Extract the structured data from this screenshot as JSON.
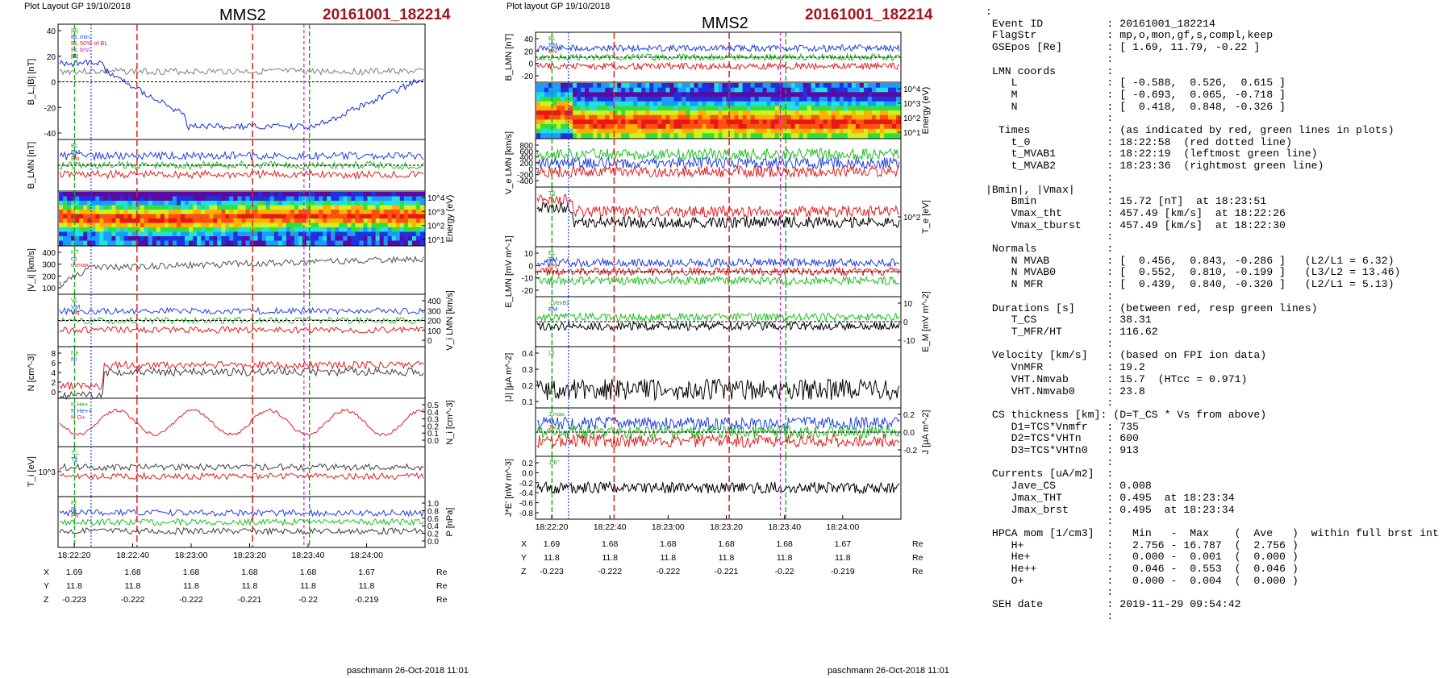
{
  "left": {
    "header": "Plot Layout GP 19/10/2018",
    "sc": "MMS2",
    "event": "20161001_182214",
    "footer": "paschmann 26-Oct-2018 11:01",
    "panels": [
      {
        "ylabel": "B_L,|B| [nT]",
        "side": "left",
        "ticks": [
          "40",
          "20",
          "0",
          "-20",
          "-40"
        ],
        "legend": [
          "|B|",
          "BL min.",
          "BL 50% of BL",
          "BL brst",
          "|B|"
        ]
      },
      {
        "ylabel": "B_LMN [nT]",
        "side": "left",
        "ticks": [],
        "legend": [
          "BL",
          "BM",
          "BN"
        ]
      },
      {
        "ylabel": "Energy (eV)",
        "side": "right",
        "ticks": [
          "10^4",
          "10^3",
          "10^2",
          "10^1"
        ],
        "legend": []
      },
      {
        "ylabel": "|V_i| [km/s]",
        "side": "left",
        "ticks": [
          "400",
          "300",
          "200",
          "100"
        ],
        "legend": [
          "HT",
          "cs",
          "dvmax"
        ]
      },
      {
        "ylabel": "V_i LMN [km/s]",
        "side": "right",
        "ticks": [
          "400",
          "300",
          "200",
          "100",
          "0"
        ],
        "legend": [
          "VL",
          "VM",
          "VN"
        ]
      },
      {
        "ylabel": "N [cm^-3]",
        "side": "left",
        "ticks": [
          "8",
          "6",
          "4",
          "2",
          "0"
        ],
        "legend": [
          "Ne",
          "Ni"
        ]
      },
      {
        "ylabel": "N_i [cm^-3]",
        "side": "right",
        "ticks": [
          "0.5",
          "0.4",
          "0.3",
          "0.2",
          "0.1",
          "0.0"
        ],
        "legend": [
          "N He+",
          "N He++",
          "N O+"
        ]
      },
      {
        "ylabel": "T_i [eV]",
        "side": "left",
        "ticks": [
          "10^3"
        ],
        "legend": [
          "T⊥",
          "T∥"
        ]
      },
      {
        "ylabel": "P [nPa]",
        "side": "right",
        "ticks": [
          "1.0",
          "0.8",
          "0.6",
          "0.4",
          "0.2",
          "0.0"
        ],
        "legend": [
          "Pt",
          "Pi",
          "Pb"
        ]
      }
    ],
    "xticks": [
      "18:22:20",
      "18:22:40",
      "18:23:00",
      "18:23:20",
      "18:23:40",
      "18:24:00"
    ],
    "X": [
      "1.69",
      "1.68",
      "1.68",
      "1.68",
      "1.68",
      "1.67"
    ],
    "Y": [
      "11.8",
      "11.8",
      "11.8",
      "11.8",
      "11.8",
      "11.8"
    ],
    "Z": [
      "-0.223",
      "-0.222",
      "-0.222",
      "-0.221",
      "-0.22",
      "-0.219"
    ],
    "unit": "Re"
  },
  "middle": {
    "header": "Plot layout GP 19/10/2018",
    "sc": "MMS2",
    "event": "20161001_182214",
    "footer": "paschmann 26-Oct-2018 11:01",
    "panels": [
      {
        "ylabel": "B_LMN [nT]",
        "side": "left",
        "ticks": [
          "40",
          "20",
          "0",
          "-20"
        ],
        "legend": [
          "BL",
          "BM",
          "BN"
        ]
      },
      {
        "ylabel": "Energy (eV)",
        "side": "right",
        "ticks": [
          "10^4",
          "10^3",
          "10^2",
          "10^1"
        ],
        "legend": []
      },
      {
        "ylabel": "V_e LMN [km/s]",
        "side": "left",
        "ticks": [
          "800",
          "600",
          "400",
          "200",
          "0",
          "-200",
          "-400"
        ],
        "legend": []
      },
      {
        "ylabel": "T_e [eV]",
        "side": "right",
        "ticks": [
          "10^2"
        ],
        "legend": [
          "T∥"
        ]
      },
      {
        "ylabel": "E_LMN [mV m^-1]",
        "side": "left",
        "ticks": [
          "10",
          "0",
          "-10",
          "-20"
        ],
        "legend": [
          "EL",
          "EM",
          "EN"
        ]
      },
      {
        "ylabel": "E_M [mV m^-2]",
        "side": "right",
        "ticks": [
          "10",
          "0",
          "-10"
        ],
        "legend": [
          "-(VexB)",
          "EM"
        ]
      },
      {
        "ylabel": "|J| [μA m^-2]",
        "side": "left",
        "ticks": [
          "0.4",
          "0.3",
          "0.2",
          "0.1"
        ],
        "legend": [
          "|J|"
        ]
      },
      {
        "ylabel": "J [μA m^-2]",
        "side": "right",
        "ticks": [
          "0.2",
          "0.0",
          "-0.2"
        ],
        "legend": [
          "J max",
          "JL",
          "JN"
        ]
      },
      {
        "ylabel": "J*E' [nW m^-3]",
        "side": "left",
        "ticks": [
          "0.2",
          "0.0",
          "-0.2",
          "-0.4",
          "-0.6",
          "-0.8"
        ],
        "legend": [
          "J*E'"
        ]
      }
    ],
    "xticks": [
      "18:22:20",
      "18:22:40",
      "18:23:00",
      "18:23:20",
      "18:23:40",
      "18:24:00"
    ],
    "X": [
      "1.69",
      "1.68",
      "1.68",
      "1.68",
      "1.68",
      "1.67"
    ],
    "Y": [
      "11.8",
      "11.8",
      "11.8",
      "11.8",
      "11.8",
      "11.8"
    ],
    "Z": [
      "-0.223",
      "-0.222",
      "-0.222",
      "-0.221",
      "-0.22",
      "-0.219"
    ],
    "unit": "Re"
  },
  "info": [
    ":",
    " Event ID          : 20161001_182214",
    " FlagStr           : mp,o,mon,gf,s,compl,keep",
    " GSEpos [Re]       : [ 1.69, 11.79, -0.22 ]",
    "                   :",
    " LMN coords        :",
    "    L              : [ -0.588,  0.526,  0.615 ]",
    "    M              : [ -0.693,  0.065, -0.718 ]",
    "    N              : [  0.418,  0.848, -0.326 ]",
    "                   :",
    "  Times            : (as indicated by red, green lines in plots)",
    "    t_0            : 18:22:58  (red dotted line)",
    "    t_MVAB1        : 18:22:19  (leftmost green line)",
    "    t_MVAB2        : 18:23:36  (rightmost green line)",
    "                   :",
    "|Bmin|, |Vmax|     :",
    "    Bmin           : 15.72 [nT]  at 18:23:51",
    "    Vmax_tht       : 457.49 [km/s]  at 18:22:26",
    "    Vmax_tburst    : 457.49 [km/s]  at 18:22:30",
    "                   :",
    " Normals           :",
    "    N MVAB         : [  0.456,  0.843, -0.286 ]   (L2/L1 = 6.32)",
    "    N MVAB0        : [  0.552,  0.810, -0.199 ]   (L3/L2 = 13.46)",
    "    N MFR          : [  0.439,  0.840, -0.320 ]   (L2/L1 = 5.13)",
    "                   :",
    " Durations [s]     : (between red, resp green lines)",
    "    T_CS           : 38.31",
    "    T_MFR/HT       : 116.62",
    "                   :",
    " Velocity [km/s]   : (based on FPI ion data)",
    "    VnMFR          : 19.2",
    "    VHT.Nmvab      : 15.7  (HTcc = 0.971)",
    "    VHT.Nmvab0     : 23.8",
    "                   :",
    " CS thickness [km]: (D=T_CS * Vs from above)",
    "    D1=TCS*Vnmfr   : 735",
    "    D2=TCS*VHTn    : 600",
    "    D3=TCS*VHTn0   : 913",
    "                   :",
    " Currents [uA/m2]  :",
    "    Jave_CS        : 0.008",
    "    Jmax_THT       : 0.495  at 18:23:34",
    "    Jmax_brst      : 0.495  at 18:23:34",
    "                   :",
    " HPCA mom [1/cm3]  :   Min   -  Max    (  Ave   )  within full brst int",
    "    H+             :   2.756 - 16.787  (  2.756 )",
    "    He+            :   0.000 -  0.001  (  0.000 )",
    "    He++           :   0.046 -  0.553  (  0.046 )",
    "    O+             :   0.000 -  0.004  (  0.000 )",
    "                   :",
    " SEH date          : 2019-11-29 09:54:42",
    "                   :"
  ],
  "chart_data": [
    {
      "type": "line",
      "title": "MMS2 20161001_182214",
      "xlabel": "",
      "x_ticks": [
        "18:22:20",
        "18:22:40",
        "18:23:00",
        "18:23:20",
        "18:23:40",
        "18:24:00"
      ],
      "panels": [
        "B_L,|B|",
        "B_LMN",
        "ion spectrogram",
        "|V_i|",
        "V_i LMN",
        "N",
        "N_i",
        "T_i",
        "P"
      ]
    },
    {
      "type": "line",
      "title": "MMS2 20161001_182214",
      "xlabel": "",
      "x_ticks": [
        "18:22:20",
        "18:22:40",
        "18:23:00",
        "18:23:20",
        "18:23:40",
        "18:24:00"
      ],
      "panels": [
        "B_LMN",
        "electron spectrogram",
        "V_e LMN",
        "T_e",
        "E_LMN",
        "E_M",
        "|J|",
        "J",
        "J*E'"
      ]
    }
  ]
}
